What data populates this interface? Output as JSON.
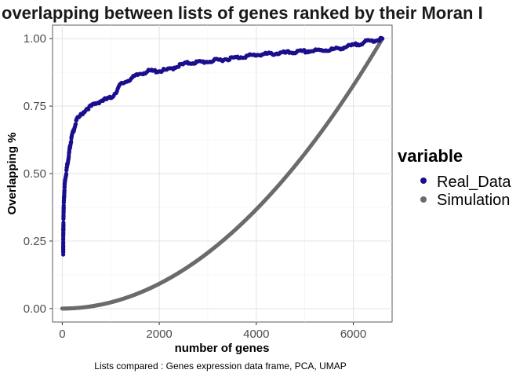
{
  "chart_data": {
    "type": "scatter",
    "title": "overlapping between lists of genes ranked by their Moran I",
    "xlabel": "number of genes",
    "ylabel": "Overlapping %",
    "caption": "Lists compared : Genes expression data frame, PCA, UMAP",
    "xlim": [
      -200,
      6800
    ],
    "ylim": [
      -0.05,
      1.05
    ],
    "xticks": [
      0,
      2000,
      4000,
      6000
    ],
    "yticks": [
      0.0,
      0.25,
      0.5,
      0.75,
      1.0
    ],
    "ytick_labels": [
      "0.00",
      "0.25",
      "0.50",
      "0.75",
      "1.00"
    ],
    "grid": true,
    "legend": {
      "title": "variable",
      "position": "right"
    },
    "series": [
      {
        "name": "Real_Data",
        "color": "#1a0f8c",
        "points": [
          [
            20,
            0.2
          ],
          [
            20,
            0.25
          ],
          [
            22,
            0.28
          ],
          [
            25,
            0.33
          ],
          [
            28,
            0.36
          ],
          [
            30,
            0.38
          ],
          [
            35,
            0.4
          ],
          [
            40,
            0.42
          ],
          [
            45,
            0.44
          ],
          [
            50,
            0.46
          ],
          [
            60,
            0.48
          ],
          [
            80,
            0.5
          ],
          [
            100,
            0.53
          ],
          [
            130,
            0.56
          ],
          [
            160,
            0.6
          ],
          [
            200,
            0.64
          ],
          [
            250,
            0.67
          ],
          [
            300,
            0.7
          ],
          [
            400,
            0.72
          ],
          [
            500,
            0.74
          ],
          [
            600,
            0.75
          ],
          [
            700,
            0.76
          ],
          [
            800,
            0.77
          ],
          [
            900,
            0.775
          ],
          [
            1000,
            0.78
          ],
          [
            1100,
            0.8
          ],
          [
            1200,
            0.83
          ],
          [
            1400,
            0.85
          ],
          [
            1600,
            0.87
          ],
          [
            1800,
            0.88
          ],
          [
            2000,
            0.88
          ],
          [
            2200,
            0.885
          ],
          [
            2400,
            0.9
          ],
          [
            2600,
            0.91
          ],
          [
            3000,
            0.915
          ],
          [
            3400,
            0.925
          ],
          [
            3800,
            0.935
          ],
          [
            4000,
            0.94
          ],
          [
            4400,
            0.945
          ],
          [
            4800,
            0.95
          ],
          [
            5200,
            0.955
          ],
          [
            5600,
            0.96
          ],
          [
            6000,
            0.975
          ],
          [
            6300,
            0.99
          ],
          [
            6500,
            0.995
          ],
          [
            6600,
            1.0
          ]
        ]
      },
      {
        "name": "Simulation",
        "color": "#6b6b6b",
        "n_max": 6600,
        "curve": "y = (x / n_max)^2"
      }
    ]
  }
}
